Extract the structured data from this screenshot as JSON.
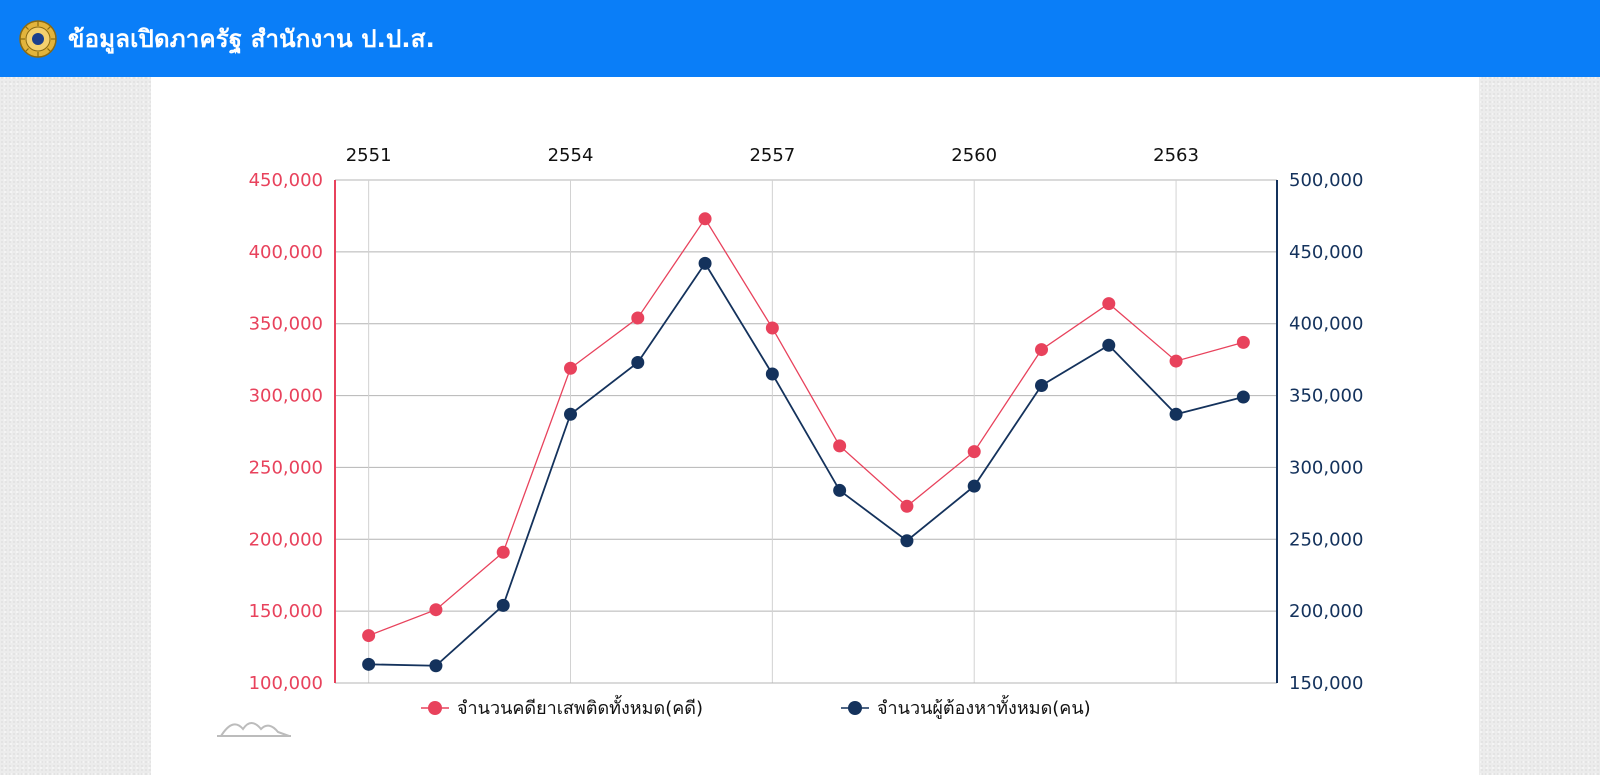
{
  "header": {
    "title": "ข้อมูลเปิดภาครัฐ สำนักงาน ป.ป.ส.",
    "background_color": "#0a7ef8",
    "logo_icon": "government-seal-icon"
  },
  "chart_data": {
    "type": "line",
    "x": [
      2551,
      2552,
      2553,
      2554,
      2555,
      2556,
      2557,
      2558,
      2559,
      2560,
      2561,
      2562,
      2563,
      2564
    ],
    "x_tick_labels": [
      "2551",
      "2554",
      "2557",
      "2560",
      "2563"
    ],
    "x_axis_position": "top",
    "y_left": {
      "range": [
        100000,
        450000
      ],
      "ticks": [
        "100,000",
        "150,000",
        "200,000",
        "250,000",
        "300,000",
        "350,000",
        "400,000",
        "450,000"
      ],
      "color": "#e8425c"
    },
    "y_right": {
      "range": [
        150000,
        500000
      ],
      "ticks": [
        "150,000",
        "200,000",
        "250,000",
        "300,000",
        "350,000",
        "400,000",
        "450,000",
        "500,000"
      ],
      "color": "#14325c"
    },
    "series": [
      {
        "name": "จำนวนคดียาเสพติดทั้งหมด(คดี)",
        "axis": "left",
        "color": "#e8425c",
        "values": [
          133000,
          151000,
          191000,
          319000,
          354000,
          423000,
          347000,
          265000,
          223000,
          261000,
          332000,
          364000,
          324000,
          337000
        ]
      },
      {
        "name": "จำนวนผู้ต้องหาทั้งหมด(คน)",
        "axis": "right",
        "color": "#14325c",
        "values": [
          163000,
          162000,
          204000,
          337000,
          373000,
          442000,
          365000,
          284000,
          249000,
          287000,
          357000,
          385000,
          337000,
          349000
        ]
      }
    ],
    "grid": true,
    "legend_position": "bottom"
  }
}
